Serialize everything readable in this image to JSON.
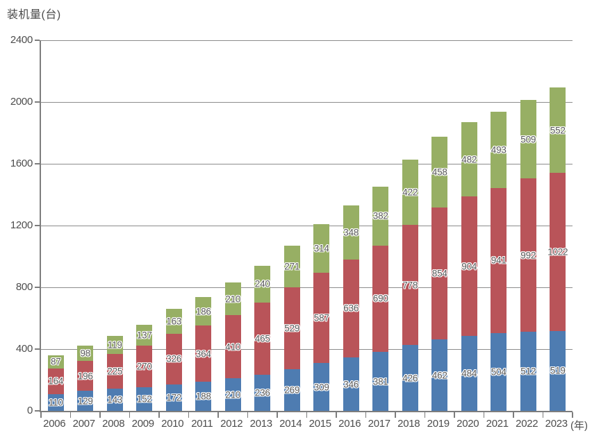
{
  "chart_data": {
    "type": "bar",
    "stacked": true,
    "title": "装机量(台)",
    "x_unit": "(年)",
    "categories": [
      "2006",
      "2007",
      "2008",
      "2009",
      "2010",
      "2011",
      "2012",
      "2013",
      "2014",
      "2015",
      "2016",
      "2017",
      "2018",
      "2019",
      "2020",
      "2021",
      "2022",
      "2023"
    ],
    "series": [
      {
        "name": "bottom-blue",
        "color": "#4E7CB1",
        "values": [
          110,
          129,
          143,
          152,
          172,
          188,
          210,
          236,
          269,
          309,
          346,
          381,
          426,
          462,
          484,
          504,
          512,
          519
        ]
      },
      {
        "name": "middle-red",
        "color": "#B95459",
        "values": [
          164,
          196,
          225,
          270,
          326,
          364,
          410,
          465,
          529,
          587,
          636,
          690,
          778,
          854,
          904,
          941,
          992,
          1022
        ]
      },
      {
        "name": "top-green",
        "color": "#97AF64",
        "values": [
          87,
          98,
          119,
          137,
          163,
          186,
          210,
          240,
          271,
          314,
          348,
          382,
          422,
          458,
          482,
          493,
          509,
          552
        ]
      }
    ],
    "ylim": [
      0,
      2400
    ],
    "yticks": [
      0,
      400,
      800,
      1200,
      1600,
      2000,
      2400
    ],
    "grid": true,
    "legend": "none",
    "data_labels": "center"
  },
  "colors": {
    "axis": "#7D7D7D",
    "gridline": "#8C8C8C",
    "tick_label": "#4D4D4D",
    "data_label": "#595959",
    "background": "#FFFFFF"
  }
}
